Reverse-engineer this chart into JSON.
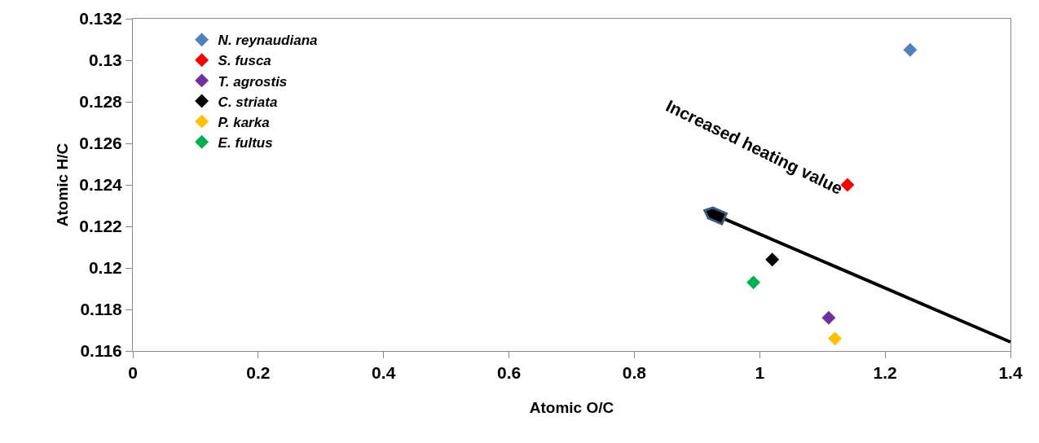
{
  "chart_data": {
    "type": "scatter",
    "xlabel": "Atomic O/C",
    "ylabel": "Atomic H/C",
    "marker": "diamond",
    "legend": "top left",
    "grid": false,
    "xlim": [
      0,
      1.4
    ],
    "xticks": [
      0,
      0.2,
      0.4,
      0.6,
      0.8,
      1,
      1.2,
      1.4
    ],
    "ylim": [
      0.116,
      0.132
    ],
    "yticks": [
      0.116,
      0.118,
      0.12,
      0.122,
      0.124,
      0.126,
      0.128,
      0.13,
      0.132
    ],
    "annotations": [
      "Increased heating value"
    ],
    "series": [
      {
        "name": "N. reynaudiana",
        "color": "#4f81bd",
        "x": [
          1.24
        ],
        "values": [
          0.1305
        ]
      },
      {
        "name": "S. fusca",
        "color": "#ff0000",
        "x": [
          1.14
        ],
        "values": [
          0.124
        ]
      },
      {
        "name": "T. agrostis",
        "color": "#7030a0",
        "x": [
          1.11
        ],
        "values": [
          0.1176
        ]
      },
      {
        "name": "C. striata",
        "color": "#000000",
        "x": [
          1.02
        ],
        "values": [
          0.1204
        ]
      },
      {
        "name": "P. karka",
        "color": "#ffc000",
        "x": [
          1.12
        ],
        "values": [
          0.1166
        ]
      },
      {
        "name": "E. fultus",
        "color": "#00b050",
        "x": [
          0.99
        ],
        "values": [
          0.1193
        ]
      }
    ]
  }
}
